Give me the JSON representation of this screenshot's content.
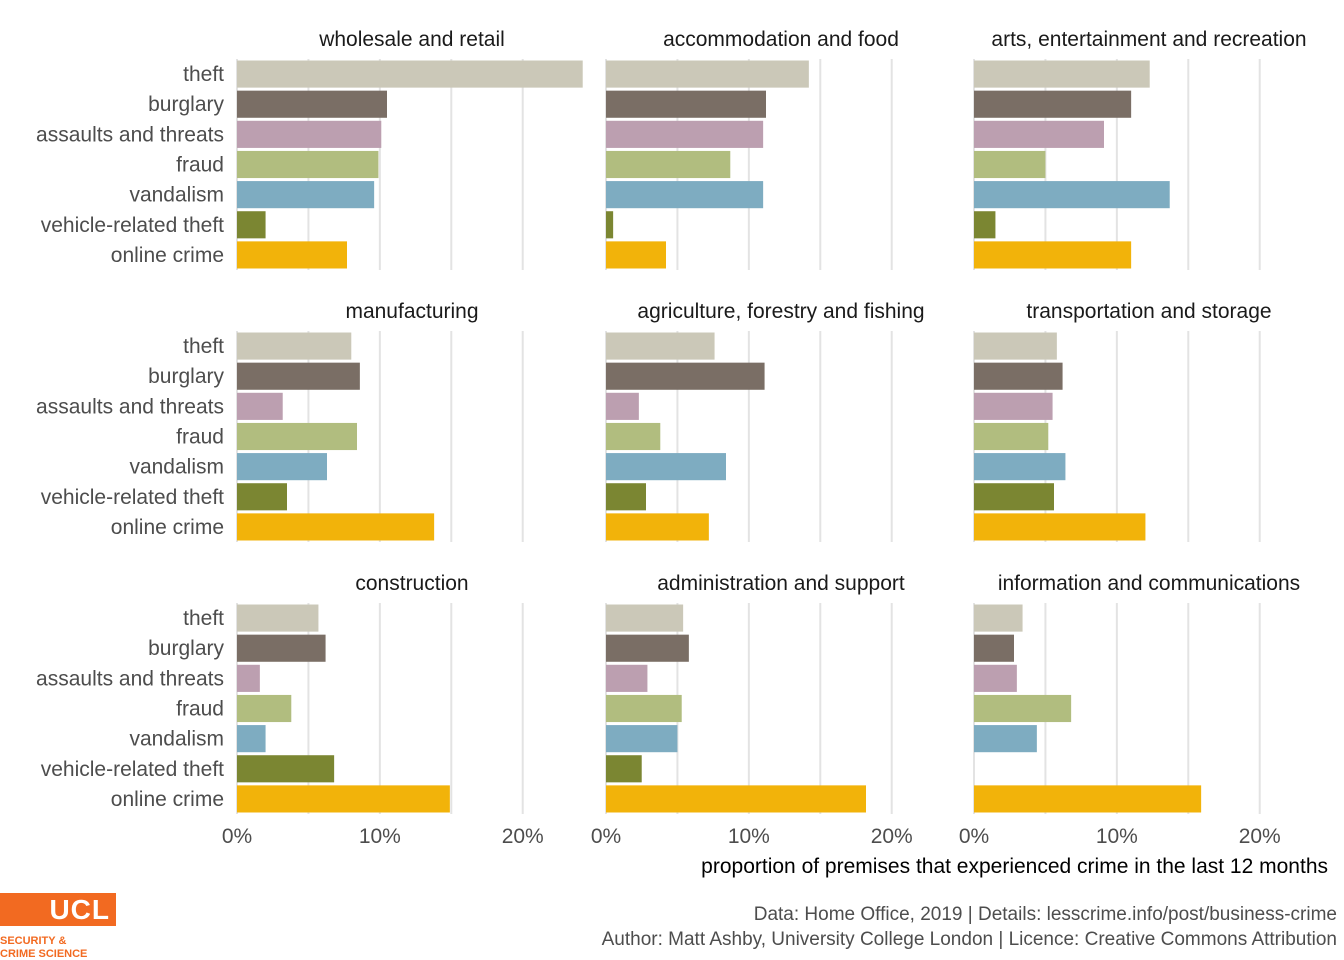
{
  "chart_data": {
    "type": "bar",
    "orientation": "horizontal",
    "layout": "facet-grid-3x3",
    "categories": [
      "theft",
      "burglary",
      "assaults and threats",
      "fraud",
      "vandalism",
      "vehicle-related theft",
      "online crime"
    ],
    "category_colors": [
      "#cbc8b8",
      "#7a6e65",
      "#bc9fb0",
      "#b1bd7f",
      "#7eacc1",
      "#7b8632",
      "#f2b30a"
    ],
    "xlabel": "proportion of premises that experienced crime in the last 12 months",
    "xlim": [
      0,
      0.245
    ],
    "xticks": [
      {
        "value": 0,
        "label": "0%"
      },
      {
        "value": 0.1,
        "label": "10%"
      },
      {
        "value": 0.2,
        "label": "20%"
      }
    ],
    "grid": true,
    "panels": [
      {
        "title": "wholesale and retail",
        "values": [
          0.242,
          0.105,
          0.101,
          0.099,
          0.096,
          0.02,
          0.077
        ]
      },
      {
        "title": "accommodation and food",
        "values": [
          0.142,
          0.112,
          0.11,
          0.087,
          0.11,
          0.005,
          0.042
        ]
      },
      {
        "title": "arts, entertainment and recreation",
        "values": [
          0.123,
          0.11,
          0.091,
          0.05,
          0.137,
          0.015,
          0.11
        ]
      },
      {
        "title": "manufacturing",
        "values": [
          0.08,
          0.086,
          0.032,
          0.084,
          0.063,
          0.035,
          0.138
        ]
      },
      {
        "title": "agriculture, forestry and fishing",
        "values": [
          0.076,
          0.111,
          0.023,
          0.038,
          0.084,
          0.028,
          0.072
        ]
      },
      {
        "title": "transportation and storage",
        "values": [
          0.058,
          0.062,
          0.055,
          0.052,
          0.064,
          0.056,
          0.12
        ]
      },
      {
        "title": "construction",
        "values": [
          0.057,
          0.062,
          0.016,
          0.038,
          0.02,
          0.068,
          0.149
        ]
      },
      {
        "title": "administration and support",
        "values": [
          0.054,
          0.058,
          0.029,
          0.053,
          0.05,
          0.025,
          0.182
        ]
      },
      {
        "title": "information and communications",
        "values": [
          0.034,
          0.028,
          0.03,
          0.068,
          0.044,
          0.0,
          0.159
        ]
      }
    ]
  },
  "caption": {
    "line1": "Data: Home Office, 2019 |  Details: lesscrime.info/post/business-crime",
    "line2": "Author: Matt Ashby, University College London |  Licence: Creative Commons Attribution"
  },
  "logo": {
    "name": "UCL",
    "sub1": "SECURITY &",
    "sub2": "CRIME SCIENCE",
    "color": "#f26a21"
  }
}
